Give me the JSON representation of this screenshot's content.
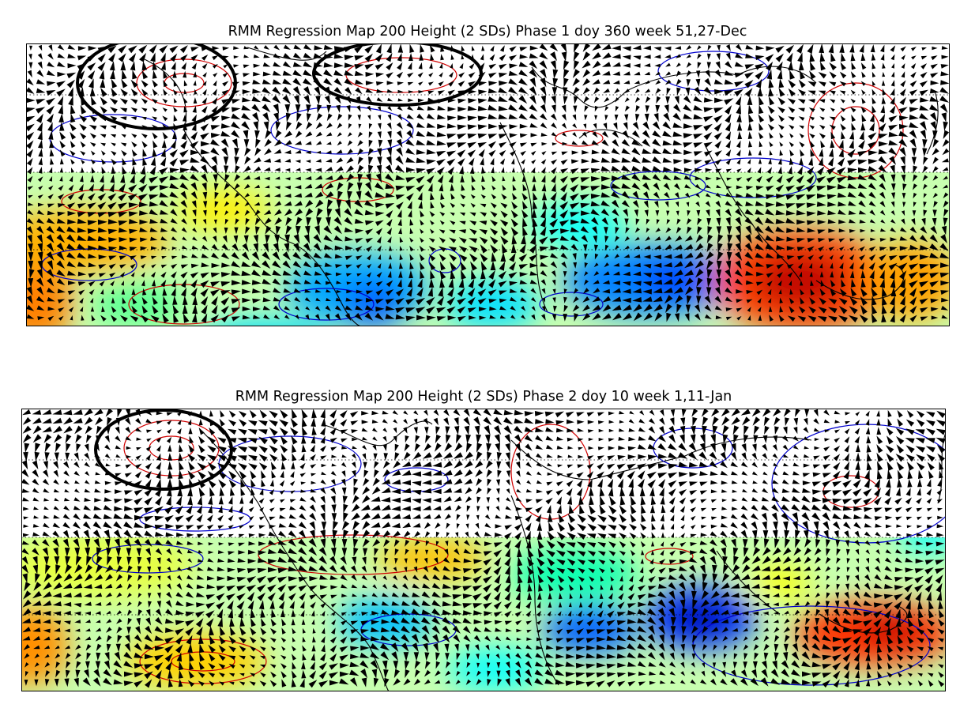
{
  "panels": [
    {
      "title": "RMM Regression Map 200 Height (2 SDs) Phase 1 doy 360 week 51,27-Dec"
    },
    {
      "title": "RMM Regression Map 200 Height (2 SDs) Phase 2 doy 10 week 1,11-Jan"
    }
  ],
  "colors": {
    "positive_contour": "#d00000",
    "negative_contour": "#0000cc",
    "coastline": "#000000",
    "vector": "#000000",
    "highlight_circle": "#000000",
    "colormap": [
      "#00008f",
      "#0000ff",
      "#0080ff",
      "#00ffff",
      "#80ff80",
      "#ffff00",
      "#ff8000",
      "#ff0000",
      "#800000"
    ]
  },
  "legend": "none",
  "grid": "dotted"
}
